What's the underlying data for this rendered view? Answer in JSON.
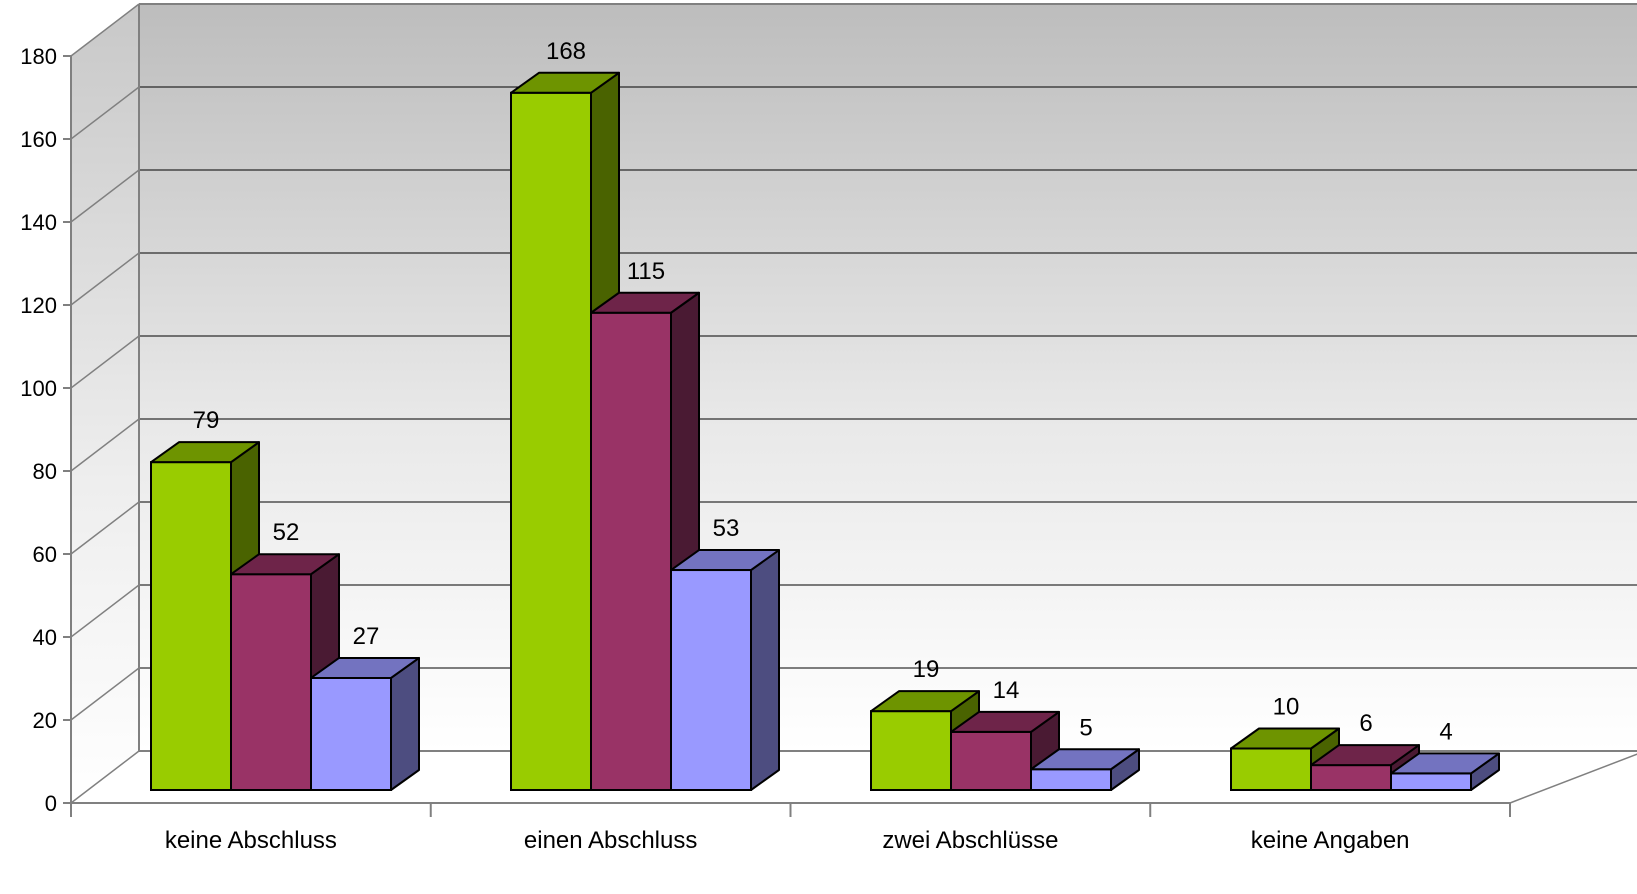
{
  "chart_data": {
    "type": "bar",
    "style": "3d-clustered",
    "categories": [
      "keine Abschluss",
      "einen Abschluss",
      "zwei Abschlüsse",
      "keine Angaben"
    ],
    "series": [
      {
        "color": "#99cc00",
        "side_color": "#4a6300",
        "top_color": "#6e9400",
        "values": [
          79,
          168,
          19,
          10
        ]
      },
      {
        "color": "#993366",
        "side_color": "#4a1a33",
        "top_color": "#6e2449",
        "values": [
          52,
          115,
          14,
          6
        ]
      },
      {
        "color": "#9999ff",
        "side_color": "#4d4d80",
        "top_color": "#7373c0",
        "values": [
          27,
          53,
          5,
          4
        ]
      }
    ],
    "ylim": [
      0,
      180
    ],
    "yticks": [
      "0",
      "20",
      "40",
      "60",
      "80",
      "100",
      "120",
      "140",
      "160",
      "180"
    ],
    "grid": true,
    "data_labels": true,
    "legend": "none"
  }
}
